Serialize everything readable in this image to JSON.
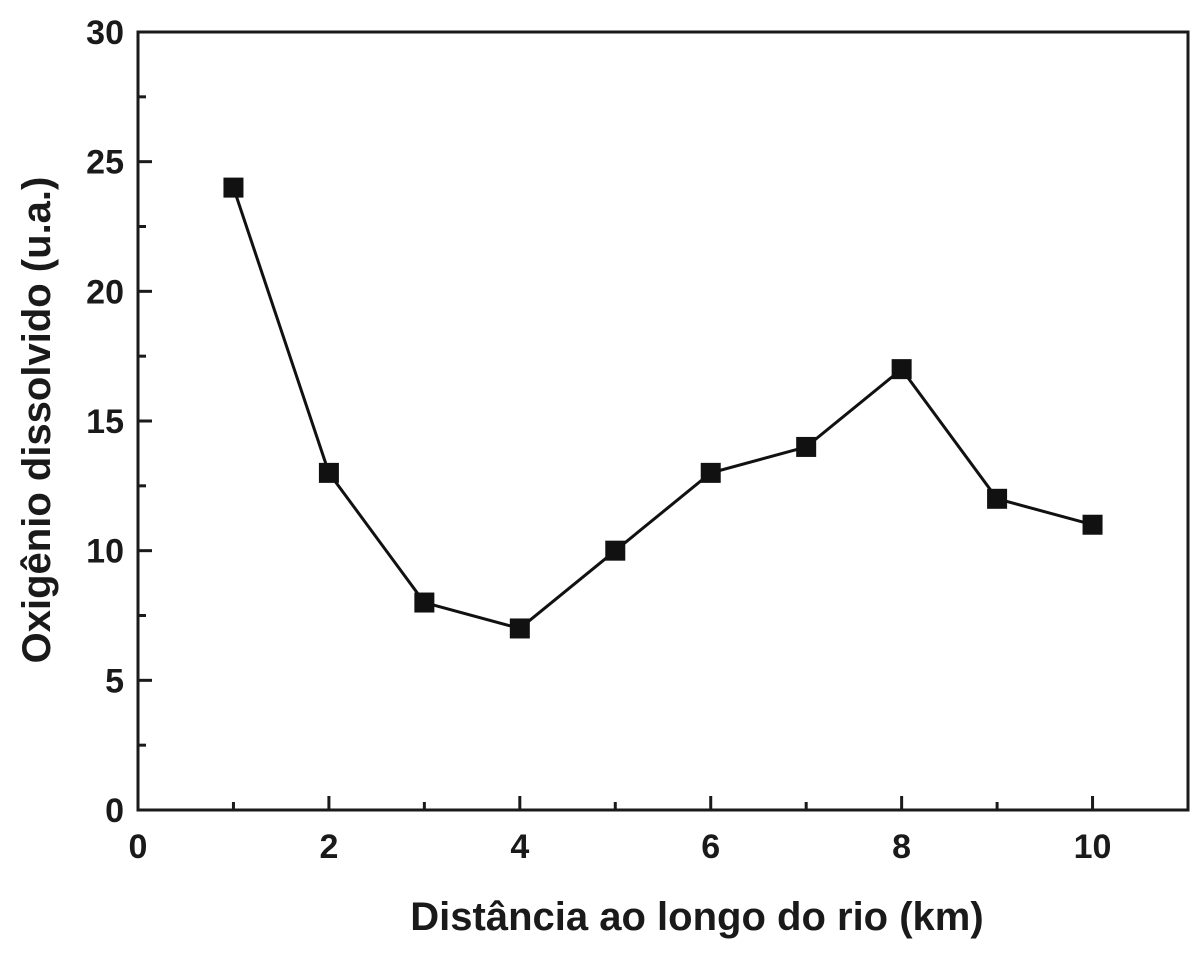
{
  "chart_data": {
    "type": "line",
    "title": "",
    "xlabel": "Distância ao longo do rio (km)",
    "ylabel": "Oxigênio dissolvido (u.a.)",
    "xlim": [
      0,
      11
    ],
    "ylim": [
      0,
      30
    ],
    "x_major_ticks": [
      "0",
      "2",
      "4",
      "6",
      "8",
      "10"
    ],
    "y_major_ticks": [
      "0",
      "5",
      "10",
      "15",
      "20",
      "25",
      "30"
    ],
    "grid": false,
    "legend": "none",
    "marker": "square",
    "line_color": "#111111",
    "marker_color": "#111111",
    "series": [
      {
        "x": [
          1,
          2,
          3,
          4,
          5,
          6,
          7,
          8,
          9,
          10
        ],
        "y": [
          24,
          13,
          8,
          7,
          10,
          13,
          14,
          17,
          12,
          11
        ]
      }
    ]
  }
}
